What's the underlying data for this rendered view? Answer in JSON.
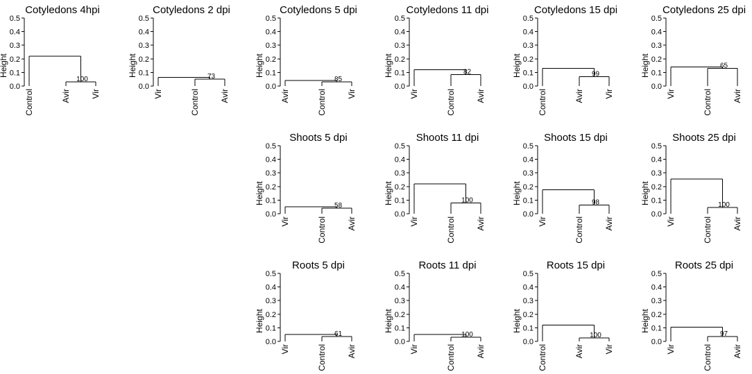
{
  "chart_data": [
    {
      "type": "dendrogram",
      "title": "Cotyledons 4hpi",
      "ylabel": "Height",
      "ylim": [
        0,
        0.5
      ],
      "yticks": [
        "0.0",
        "0.1",
        "0.2",
        "0.3",
        "0.4",
        "0.5"
      ],
      "leaves": [
        "Control",
        "Avir",
        "Vir"
      ],
      "inner": {
        "pair": [
          "Avir",
          "Vir"
        ],
        "height": 0.03,
        "bootstrap": "100"
      },
      "root_height": 0.22
    },
    {
      "type": "dendrogram",
      "title": "Cotyledons 2 dpi",
      "ylabel": "Height",
      "ylim": [
        0,
        0.5
      ],
      "yticks": [
        "0.0",
        "0.1",
        "0.2",
        "0.3",
        "0.4",
        "0.5"
      ],
      "leaves": [
        "Vir",
        "Control",
        "Avir"
      ],
      "inner": {
        "pair": [
          "Control",
          "Avir"
        ],
        "height": 0.05,
        "bootstrap": "73"
      },
      "root_height": 0.065
    },
    {
      "type": "dendrogram",
      "title": "Cotyledons 5 dpi",
      "ylabel": "Height",
      "ylim": [
        0,
        0.5
      ],
      "yticks": [
        "0.0",
        "0.1",
        "0.2",
        "0.3",
        "0.4",
        "0.5"
      ],
      "leaves": [
        "Avir",
        "Control",
        "Vir"
      ],
      "inner": {
        "pair": [
          "Control",
          "Vir"
        ],
        "height": 0.03,
        "bootstrap": "85"
      },
      "root_height": 0.04
    },
    {
      "type": "dendrogram",
      "title": "Cotyledons 11 dpi",
      "ylabel": "Height",
      "ylim": [
        0,
        0.5
      ],
      "yticks": [
        "0.0",
        "0.1",
        "0.2",
        "0.3",
        "0.4",
        "0.5"
      ],
      "leaves": [
        "Vir",
        "Control",
        "Avir"
      ],
      "inner": {
        "pair": [
          "Control",
          "Avir"
        ],
        "height": 0.085,
        "bootstrap": "82"
      },
      "root_height": 0.12
    },
    {
      "type": "dendrogram",
      "title": "Cotyledons 15 dpi",
      "ylabel": "Height",
      "ylim": [
        0,
        0.5
      ],
      "yticks": [
        "0.0",
        "0.1",
        "0.2",
        "0.3",
        "0.4",
        "0.5"
      ],
      "leaves": [
        "Control",
        "Avir",
        "Vir"
      ],
      "inner": {
        "pair": [
          "Avir",
          "Vir"
        ],
        "height": 0.07,
        "bootstrap": "99"
      },
      "root_height": 0.13
    },
    {
      "type": "dendrogram",
      "title": "Cotyledons 25 dpi",
      "ylabel": "Height",
      "ylim": [
        0,
        0.5
      ],
      "yticks": [
        "0.0",
        "0.1",
        "0.2",
        "0.3",
        "0.4",
        "0.5"
      ],
      "leaves": [
        "Vir",
        "Control",
        "Avir"
      ],
      "inner": {
        "pair": [
          "Control",
          "Avir"
        ],
        "height": 0.13,
        "bootstrap": "65"
      },
      "root_height": 0.14
    },
    {
      "type": "dendrogram",
      "title": "Shoots 5 dpi",
      "ylabel": "Height",
      "ylim": [
        0,
        0.5
      ],
      "yticks": [
        "0.0",
        "0.1",
        "0.2",
        "0.3",
        "0.4",
        "0.5"
      ],
      "leaves": [
        "Vir",
        "Control",
        "Avir"
      ],
      "inner": {
        "pair": [
          "Control",
          "Avir"
        ],
        "height": 0.04,
        "bootstrap": "58"
      },
      "root_height": 0.05
    },
    {
      "type": "dendrogram",
      "title": "Shoots 11 dpi",
      "ylabel": "Height",
      "ylim": [
        0,
        0.5
      ],
      "yticks": [
        "0.0",
        "0.1",
        "0.2",
        "0.3",
        "0.4",
        "0.5"
      ],
      "leaves": [
        "Vir",
        "Control",
        "Avir"
      ],
      "inner": {
        "pair": [
          "Control",
          "Avir"
        ],
        "height": 0.08,
        "bootstrap": "100"
      },
      "root_height": 0.22
    },
    {
      "type": "dendrogram",
      "title": "Shoots 15 dpi",
      "ylabel": "Height",
      "ylim": [
        0,
        0.5
      ],
      "yticks": [
        "0.0",
        "0.1",
        "0.2",
        "0.3",
        "0.4",
        "0.5"
      ],
      "leaves": [
        "Vir",
        "Control",
        "Avir"
      ],
      "inner": {
        "pair": [
          "Control",
          "Avir"
        ],
        "height": 0.065,
        "bootstrap": "98"
      },
      "root_height": 0.175
    },
    {
      "type": "dendrogram",
      "title": "Shoots 25 dpi",
      "ylabel": "Height",
      "ylim": [
        0,
        0.5
      ],
      "yticks": [
        "0.0",
        "0.1",
        "0.2",
        "0.3",
        "0.4",
        "0.5"
      ],
      "leaves": [
        "Vir",
        "Control",
        "Avir"
      ],
      "inner": {
        "pair": [
          "Control",
          "Avir"
        ],
        "height": 0.045,
        "bootstrap": "100"
      },
      "root_height": 0.255
    },
    {
      "type": "dendrogram",
      "title": "Roots 5 dpi",
      "ylabel": "Height",
      "ylim": [
        0,
        0.5
      ],
      "yticks": [
        "0.0",
        "0.1",
        "0.2",
        "0.3",
        "0.4",
        "0.5"
      ],
      "leaves": [
        "Vir",
        "Control",
        "Avir"
      ],
      "inner": {
        "pair": [
          "Control",
          "Avir"
        ],
        "height": 0.035,
        "bootstrap": "61"
      },
      "root_height": 0.05
    },
    {
      "type": "dendrogram",
      "title": "Roots 11 dpi",
      "ylabel": "Height",
      "ylim": [
        0,
        0.5
      ],
      "yticks": [
        "0.0",
        "0.1",
        "0.2",
        "0.3",
        "0.4",
        "0.5"
      ],
      "leaves": [
        "Vir",
        "Control",
        "Avir"
      ],
      "inner": {
        "pair": [
          "Control",
          "Avir"
        ],
        "height": 0.03,
        "bootstrap": "100"
      },
      "root_height": 0.05
    },
    {
      "type": "dendrogram",
      "title": "Roots 15 dpi",
      "ylabel": "Height",
      "ylim": [
        0,
        0.5
      ],
      "yticks": [
        "0.0",
        "0.1",
        "0.2",
        "0.3",
        "0.4",
        "0.5"
      ],
      "leaves": [
        "Control",
        "Avir",
        "Vir"
      ],
      "inner": {
        "pair": [
          "Avir",
          "Vir"
        ],
        "height": 0.025,
        "bootstrap": "100"
      },
      "root_height": 0.12
    },
    {
      "type": "dendrogram",
      "title": "Roots 25 dpi",
      "ylabel": "Height",
      "ylim": [
        0,
        0.5
      ],
      "yticks": [
        "0.0",
        "0.1",
        "0.2",
        "0.3",
        "0.4",
        "0.5"
      ],
      "leaves": [
        "Vir",
        "Control",
        "Avir"
      ],
      "inner": {
        "pair": [
          "Control",
          "Avir"
        ],
        "height": 0.035,
        "bootstrap": "97"
      },
      "root_height": 0.105
    }
  ]
}
